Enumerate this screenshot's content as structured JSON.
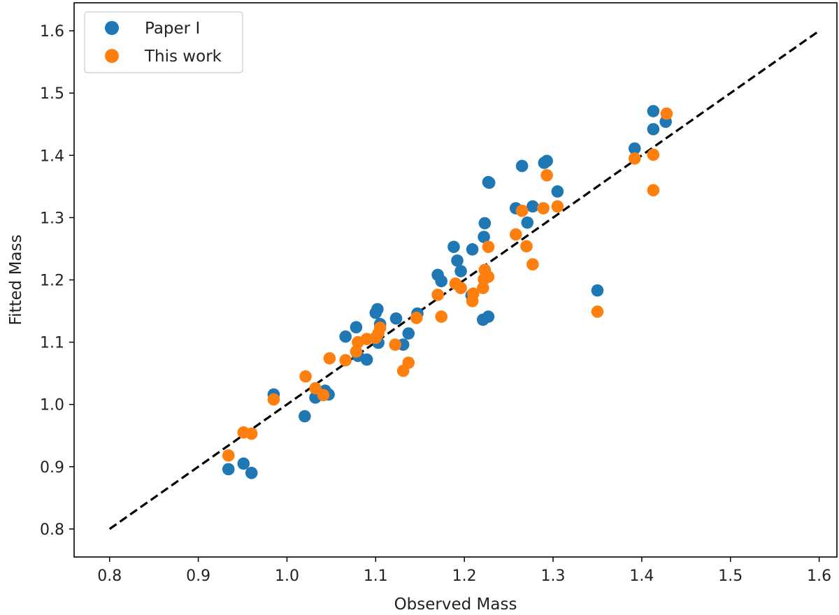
{
  "chart_data": {
    "type": "scatter",
    "title": "",
    "xlabel": "Observed Mass",
    "ylabel": "Fitted Mass",
    "xlim": [
      0.76,
      1.62
    ],
    "ylim": [
      0.755,
      1.645
    ],
    "xticks": [
      0.8,
      0.9,
      1.0,
      1.1,
      1.2,
      1.3,
      1.4,
      1.5,
      1.6
    ],
    "yticks": [
      0.8,
      0.9,
      1.0,
      1.1,
      1.2,
      1.3,
      1.4,
      1.5,
      1.6
    ],
    "xtick_labels": [
      "0.8",
      "0.9",
      "1.0",
      "1.1",
      "1.2",
      "1.3",
      "1.4",
      "1.5",
      "1.6"
    ],
    "ytick_labels": [
      "0.8",
      "0.9",
      "1.0",
      "1.1",
      "1.2",
      "1.3",
      "1.4",
      "1.5",
      "1.6"
    ],
    "grid": false,
    "legend_position": "top-left",
    "reference_line": {
      "style": "dashed",
      "color": "#000000",
      "x": [
        0.8,
        1.6
      ],
      "y": [
        0.8,
        1.6
      ]
    },
    "series": [
      {
        "name": "Paper I",
        "color": "#1f77b4",
        "points": [
          [
            0.934,
            0.896
          ],
          [
            0.951,
            0.905
          ],
          [
            0.96,
            0.89
          ],
          [
            0.985,
            1.016
          ],
          [
            1.02,
            0.981
          ],
          [
            1.032,
            1.011
          ],
          [
            1.043,
            1.022
          ],
          [
            1.047,
            1.016
          ],
          [
            1.066,
            1.109
          ],
          [
            1.078,
            1.124
          ],
          [
            1.08,
            1.078
          ],
          [
            1.09,
            1.072
          ],
          [
            1.1,
            1.147
          ],
          [
            1.102,
            1.153
          ],
          [
            1.103,
            1.099
          ],
          [
            1.105,
            1.129
          ],
          [
            1.123,
            1.138
          ],
          [
            1.131,
            1.096
          ],
          [
            1.137,
            1.114
          ],
          [
            1.147,
            1.146
          ],
          [
            1.17,
            1.208
          ],
          [
            1.174,
            1.198
          ],
          [
            1.188,
            1.253
          ],
          [
            1.192,
            1.231
          ],
          [
            1.196,
            1.214
          ],
          [
            1.208,
            1.175
          ],
          [
            1.209,
            1.249
          ],
          [
            1.221,
            1.136
          ],
          [
            1.222,
            1.269
          ],
          [
            1.223,
            1.291
          ],
          [
            1.227,
            1.141
          ],
          [
            1.227,
            1.357
          ],
          [
            1.228,
            1.356
          ],
          [
            1.258,
            1.315
          ],
          [
            1.265,
            1.383
          ],
          [
            1.271,
            1.292
          ],
          [
            1.277,
            1.318
          ],
          [
            1.29,
            1.388
          ],
          [
            1.293,
            1.391
          ],
          [
            1.305,
            1.342
          ],
          [
            1.35,
            1.183
          ],
          [
            1.392,
            1.411
          ],
          [
            1.413,
            1.471
          ],
          [
            1.413,
            1.442
          ],
          [
            1.427,
            1.454
          ]
        ]
      },
      {
        "name": "This work",
        "color": "#ff7f0e",
        "points": [
          [
            0.934,
            0.918
          ],
          [
            0.951,
            0.955
          ],
          [
            0.96,
            0.953
          ],
          [
            0.985,
            1.008
          ],
          [
            1.021,
            1.045
          ],
          [
            1.032,
            1.026
          ],
          [
            1.041,
            1.015
          ],
          [
            1.048,
            1.074
          ],
          [
            1.066,
            1.071
          ],
          [
            1.078,
            1.085
          ],
          [
            1.08,
            1.1
          ],
          [
            1.09,
            1.105
          ],
          [
            1.1,
            1.107
          ],
          [
            1.103,
            1.114
          ],
          [
            1.105,
            1.123
          ],
          [
            1.122,
            1.096
          ],
          [
            1.131,
            1.054
          ],
          [
            1.137,
            1.067
          ],
          [
            1.146,
            1.139
          ],
          [
            1.17,
            1.176
          ],
          [
            1.174,
            1.141
          ],
          [
            1.19,
            1.194
          ],
          [
            1.196,
            1.187
          ],
          [
            1.209,
            1.166
          ],
          [
            1.21,
            1.178
          ],
          [
            1.221,
            1.187
          ],
          [
            1.222,
            1.201
          ],
          [
            1.223,
            1.216
          ],
          [
            1.227,
            1.205
          ],
          [
            1.227,
            1.253
          ],
          [
            1.258,
            1.273
          ],
          [
            1.265,
            1.311
          ],
          [
            1.27,
            1.254
          ],
          [
            1.277,
            1.225
          ],
          [
            1.289,
            1.315
          ],
          [
            1.293,
            1.368
          ],
          [
            1.305,
            1.318
          ],
          [
            1.35,
            1.149
          ],
          [
            1.392,
            1.395
          ],
          [
            1.413,
            1.401
          ],
          [
            1.413,
            1.344
          ],
          [
            1.428,
            1.467
          ]
        ]
      }
    ]
  }
}
